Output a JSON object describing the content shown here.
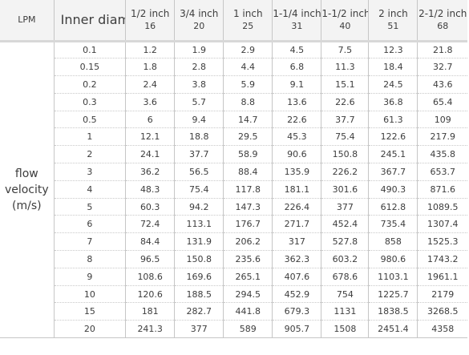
{
  "header": {
    "corner_label": "LPM",
    "inner_diameter_label": "Inner diameter (inch)",
    "pipes": [
      {
        "name": "1/2  inch",
        "mm": "16"
      },
      {
        "name": "3/4 inch",
        "mm": "20"
      },
      {
        "name": "1 inch",
        "mm": "25"
      },
      {
        "name": "1-1/4 inch",
        "mm": "31"
      },
      {
        "name": "1-1/2 inch",
        "mm": "40"
      },
      {
        "name": "2 inch",
        "mm": "51"
      },
      {
        "name": "2-1/2 inch",
        "mm": "68"
      }
    ]
  },
  "side_label": "flow velocity (m/s)",
  "rows": [
    {
      "velocity": "0.1",
      "values": [
        "1.2",
        "1.9",
        "2.9",
        "4.5",
        "7.5",
        "12.3",
        "21.8"
      ]
    },
    {
      "velocity": "0.15",
      "values": [
        "1.8",
        "2.8",
        "4.4",
        "6.8",
        "11.3",
        "18.4",
        "32.7"
      ]
    },
    {
      "velocity": "0.2",
      "values": [
        "2.4",
        "3.8",
        "5.9",
        "9.1",
        "15.1",
        "24.5",
        "43.6"
      ]
    },
    {
      "velocity": "0.3",
      "values": [
        "3.6",
        "5.7",
        "8.8",
        "13.6",
        "22.6",
        "36.8",
        "65.4"
      ]
    },
    {
      "velocity": "0.5",
      "values": [
        "6",
        "9.4",
        "14.7",
        "22.6",
        "37.7",
        "61.3",
        "109"
      ]
    },
    {
      "velocity": "1",
      "values": [
        "12.1",
        "18.8",
        "29.5",
        "45.3",
        "75.4",
        "122.6",
        "217.9"
      ]
    },
    {
      "velocity": "2",
      "values": [
        "24.1",
        "37.7",
        "58.9",
        "90.6",
        "150.8",
        "245.1",
        "435.8"
      ]
    },
    {
      "velocity": "3",
      "values": [
        "36.2",
        "56.5",
        "88.4",
        "135.9",
        "226.2",
        "367.7",
        "653.7"
      ]
    },
    {
      "velocity": "4",
      "values": [
        "48.3",
        "75.4",
        "117.8",
        "181.1",
        "301.6",
        "490.3",
        "871.6"
      ]
    },
    {
      "velocity": "5",
      "values": [
        "60.3",
        "94.2",
        "147.3",
        "226.4",
        "377",
        "612.8",
        "1089.5"
      ]
    },
    {
      "velocity": "6",
      "values": [
        "72.4",
        "113.1",
        "176.7",
        "271.7",
        "452.4",
        "735.4",
        "1307.4"
      ]
    },
    {
      "velocity": "7",
      "values": [
        "84.4",
        "131.9",
        "206.2",
        "317",
        "527.8",
        "858",
        "1525.3"
      ]
    },
    {
      "velocity": "8",
      "values": [
        "96.5",
        "150.8",
        "235.6",
        "362.3",
        "603.2",
        "980.6",
        "1743.2"
      ]
    },
    {
      "velocity": "9",
      "values": [
        "108.6",
        "169.6",
        "265.1",
        "407.6",
        "678.6",
        "1103.1",
        "1961.1"
      ]
    },
    {
      "velocity": "10",
      "values": [
        "120.6",
        "188.5",
        "294.5",
        "452.9",
        "754",
        "1225.7",
        "2179"
      ]
    },
    {
      "velocity": "15",
      "values": [
        "181",
        "282.7",
        "441.8",
        "679.3",
        "1131",
        "1838.5",
        "3268.5"
      ]
    },
    {
      "velocity": "20",
      "values": [
        "241.3",
        "377",
        "589",
        "905.7",
        "1508",
        "2451.4",
        "4358"
      ]
    }
  ]
}
